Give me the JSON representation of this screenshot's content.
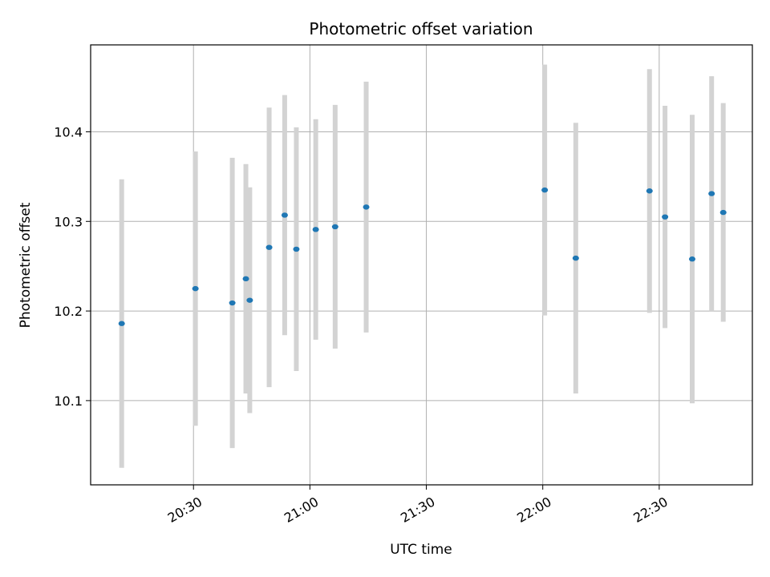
{
  "chart_data": {
    "type": "scatter",
    "title": "Photometric offset variation",
    "xlabel": "UTC time",
    "ylabel": "Photometric offset",
    "xlim": [
      "20:03:30",
      "22:54:00"
    ],
    "ylim": [
      10.006,
      10.497
    ],
    "x_ticks": [
      "20:30",
      "21:00",
      "21:30",
      "22:00",
      "22:30"
    ],
    "y_ticks": [
      "10.1",
      "10.2",
      "10.3",
      "10.4"
    ],
    "grid": true,
    "colors": {
      "points": "#1f77b4",
      "errorbars": "#d3d3d3",
      "grid": "#b0b0b0"
    },
    "series": [
      {
        "points": [
          {
            "x": "20:11:30",
            "y": 10.186,
            "err": 0.161
          },
          {
            "x": "20:30:30",
            "y": 10.225,
            "err": 0.153
          },
          {
            "x": "20:40:00",
            "y": 10.209,
            "err": 0.162
          },
          {
            "x": "20:43:30",
            "y": 10.236,
            "err": 0.128
          },
          {
            "x": "20:44:30",
            "y": 10.212,
            "err": 0.126
          },
          {
            "x": "20:49:30",
            "y": 10.271,
            "err": 0.156
          },
          {
            "x": "20:53:30",
            "y": 10.307,
            "err": 0.134
          },
          {
            "x": "20:56:30",
            "y": 10.269,
            "err": 0.136
          },
          {
            "x": "21:01:30",
            "y": 10.291,
            "err": 0.123
          },
          {
            "x": "21:06:30",
            "y": 10.294,
            "err": 0.136
          },
          {
            "x": "21:14:30",
            "y": 10.316,
            "err": 0.14
          },
          {
            "x": "22:00:30",
            "y": 10.335,
            "err": 0.14
          },
          {
            "x": "22:08:30",
            "y": 10.259,
            "err": 0.151
          },
          {
            "x": "22:27:30",
            "y": 10.334,
            "err": 0.136
          },
          {
            "x": "22:31:30",
            "y": 10.305,
            "err": 0.124
          },
          {
            "x": "22:38:30",
            "y": 10.258,
            "err": 0.161
          },
          {
            "x": "22:43:30",
            "y": 10.331,
            "err": 0.131
          },
          {
            "x": "22:46:30",
            "y": 10.31,
            "err": 0.122
          }
        ]
      }
    ]
  }
}
